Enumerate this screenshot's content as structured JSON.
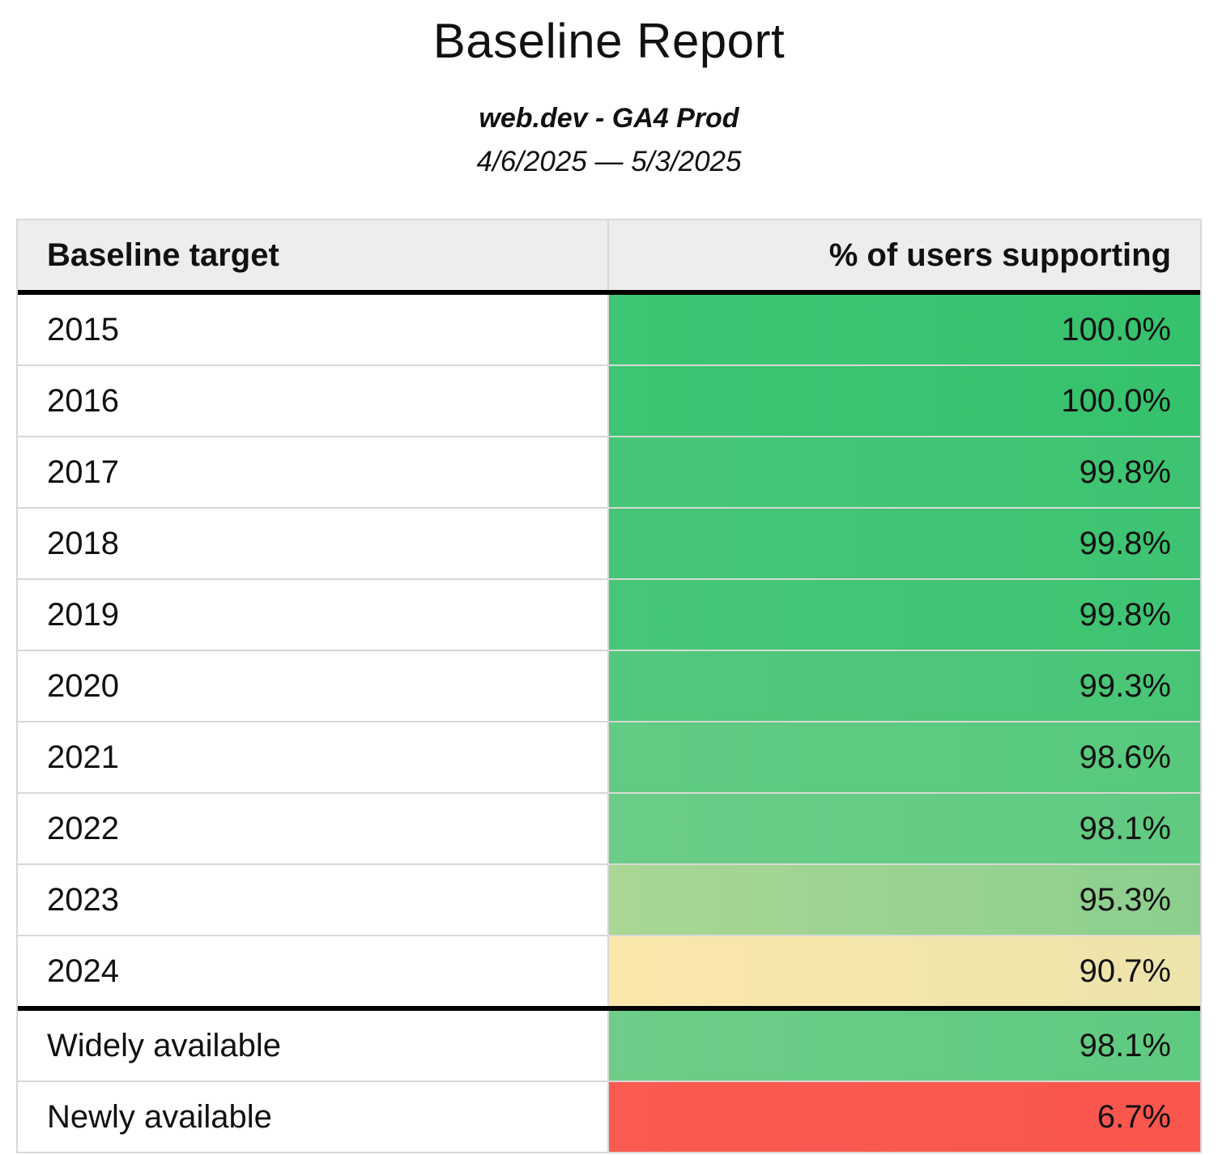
{
  "report": {
    "title": "Baseline Report",
    "property": "web.dev - GA4 Prod",
    "date_range": "4/6/2025 — 5/3/2025"
  },
  "table": {
    "columns": {
      "target": "Baseline target",
      "percent": "% of users supporting"
    },
    "rows": [
      {
        "target": "2015",
        "percent": "100.0%",
        "color_left": "#3ec573",
        "color_right": "#36c16d"
      },
      {
        "target": "2016",
        "percent": "100.0%",
        "color_left": "#3ec573",
        "color_right": "#36c16d"
      },
      {
        "target": "2017",
        "percent": "99.8%",
        "color_left": "#45c677",
        "color_right": "#3dc371"
      },
      {
        "target": "2018",
        "percent": "99.8%",
        "color_left": "#45c677",
        "color_right": "#3dc371"
      },
      {
        "target": "2019",
        "percent": "99.8%",
        "color_left": "#46c778",
        "color_right": "#3dc371"
      },
      {
        "target": "2020",
        "percent": "99.3%",
        "color_left": "#52c87d",
        "color_right": "#49c576"
      },
      {
        "target": "2021",
        "percent": "98.6%",
        "color_left": "#62cb83",
        "color_right": "#57c97c"
      },
      {
        "target": "2022",
        "percent": "98.1%",
        "color_left": "#6bcd87",
        "color_right": "#60ca81"
      },
      {
        "target": "2023",
        "percent": "95.3%",
        "color_left": "#a9d794",
        "color_right": "#8bcf8d"
      },
      {
        "target": "2024",
        "percent": "90.7%",
        "color_left": "#fbe7ac",
        "color_right": "#ece4ab"
      },
      {
        "target": "Widely available",
        "percent": "98.1%",
        "color_left": "#6ecd88",
        "color_right": "#5fca81"
      },
      {
        "target": "Newly available",
        "percent": "6.7%",
        "color_left": "#f95b51",
        "color_right": "#f9564d"
      }
    ]
  },
  "colors": {
    "header_background": "#ededed",
    "grid_border": "#d8d8d8",
    "separator": "#000000",
    "text": "#111111",
    "page_background": "#ffffff"
  },
  "chart_data": {
    "type": "table",
    "title": "Baseline Report",
    "subtitle": "web.dev - GA4 Prod",
    "date_range": "4/6/2025 — 5/3/2025",
    "columns": [
      "Baseline target",
      "% of users supporting"
    ],
    "categories": [
      "2015",
      "2016",
      "2017",
      "2018",
      "2019",
      "2020",
      "2021",
      "2022",
      "2023",
      "2024",
      "Widely available",
      "Newly available"
    ],
    "values": [
      100.0,
      100.0,
      99.8,
      99.8,
      99.8,
      99.3,
      98.6,
      98.1,
      95.3,
      90.7,
      98.1,
      6.7
    ],
    "value_unit": "%",
    "color_scale": "green (high) → yellow (~90%) → red (low)",
    "legend_position": "none",
    "grid": true
  }
}
